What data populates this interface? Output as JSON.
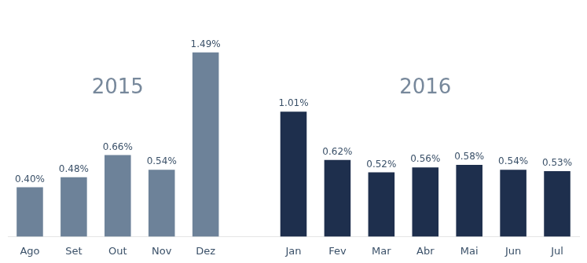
{
  "chart_data": {
    "type": "bar",
    "categories": [
      "Ago",
      "Set",
      "Out",
      "Nov",
      "Dez",
      null,
      "Jan",
      "Fev",
      "Mar",
      "Abr",
      "Mai",
      "Jun",
      "Jul"
    ],
    "values": [
      0.4,
      0.48,
      0.66,
      0.54,
      1.49,
      null,
      1.01,
      0.62,
      0.52,
      0.56,
      0.58,
      0.54,
      0.53
    ],
    "value_labels": [
      "0.40%",
      "0.48%",
      "0.66%",
      "0.54%",
      "1.49%",
      null,
      "1.01%",
      "0.62%",
      "0.52%",
      "0.56%",
      "0.58%",
      "0.54%",
      "0.53%"
    ],
    "colors": [
      "#6d8299",
      "#6d8299",
      "#6d8299",
      "#6d8299",
      "#6d8299",
      null,
      "#1e2f4d",
      "#1e2f4d",
      "#1e2f4d",
      "#1e2f4d",
      "#1e2f4d",
      "#1e2f4d",
      "#1e2f4d"
    ],
    "annotations": [
      "2015",
      "2016"
    ],
    "ylim": [
      0,
      1.85
    ],
    "data_labels": true,
    "tick_labels": "x",
    "grid": false
  }
}
